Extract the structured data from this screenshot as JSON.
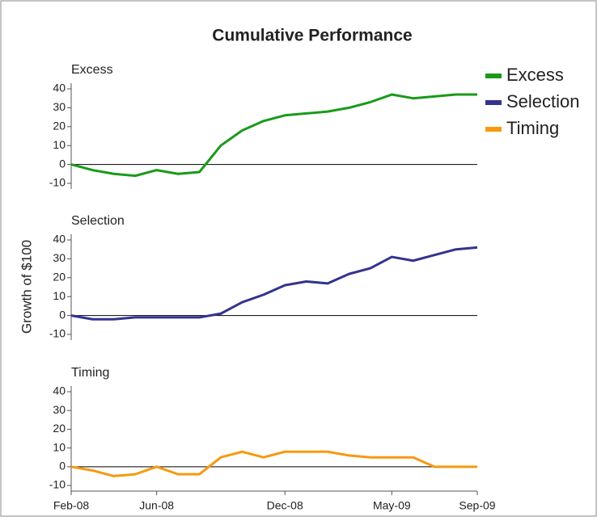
{
  "chart_data": {
    "type": "line",
    "title": "Cumulative Performance",
    "ylabel": "Growth of $100",
    "x": [
      "2008-02",
      "2008-03",
      "2008-04",
      "2008-05",
      "2008-06",
      "2008-07",
      "2008-08",
      "2008-09",
      "2008-10",
      "2008-11",
      "2008-12",
      "2009-01",
      "2009-02",
      "2009-03",
      "2009-04",
      "2009-05",
      "2009-06",
      "2009-07",
      "2009-08",
      "2009-09"
    ],
    "xticks": [
      {
        "value": "2008-02",
        "label": "Feb-08"
      },
      {
        "value": "2008-06",
        "label": "Jun-08"
      },
      {
        "value": "2008-12",
        "label": "Dec-08"
      },
      {
        "value": "2009-05",
        "label": "May-09"
      },
      {
        "value": "2009-09",
        "label": "Sep-09"
      }
    ],
    "ylim": [
      -13,
      43
    ],
    "yticks": [
      -10,
      0,
      10,
      20,
      30,
      40
    ],
    "legend": "upper right",
    "series": [
      {
        "name": "Excess",
        "color": "#1a9a1a",
        "values": [
          0,
          -3,
          -5,
          -6,
          -3,
          -5,
          -4,
          10,
          18,
          23,
          26,
          27,
          28,
          30,
          33,
          37,
          35,
          36,
          37,
          37
        ]
      },
      {
        "name": "Selection",
        "color": "#33338f",
        "values": [
          0,
          -2,
          -2,
          -1,
          -1,
          -1,
          -1,
          1,
          7,
          11,
          16,
          18,
          17,
          22,
          25,
          31,
          29,
          32,
          35,
          36
        ]
      },
      {
        "name": "Timing",
        "color": "#f59a0f",
        "values": [
          0,
          -2,
          -5,
          -4,
          0,
          -4,
          -4,
          5,
          8,
          5,
          8,
          8,
          8,
          6,
          5,
          5,
          5,
          0,
          0,
          0
        ]
      }
    ]
  }
}
